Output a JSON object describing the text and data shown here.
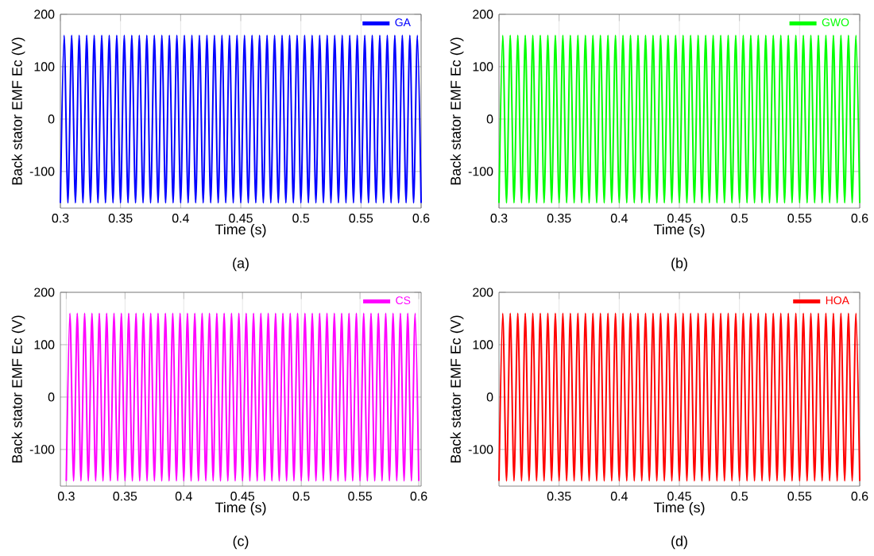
{
  "chart_data": [
    {
      "type": "line",
      "xlabel": "Time (s)",
      "ylabel": "Back stator EMF Ec (V)",
      "annotations": [
        "(a)"
      ],
      "xlim": [
        0.3,
        0.6
      ],
      "ylim": [
        -170,
        200
      ],
      "xticks": [
        0.3,
        0.35,
        0.4,
        0.45,
        0.5,
        0.55,
        0.6
      ],
      "yticks": [
        -100,
        0,
        100,
        200
      ],
      "grid": true,
      "legend": "top right",
      "x": [
        0.3,
        0.303125,
        0.30625,
        0.309375,
        0.3125,
        0.315625,
        0.31875,
        0.321875,
        0.325,
        0.328125,
        0.33125,
        0.334375,
        0.3375,
        0.340625,
        0.34375,
        0.346875,
        0.35,
        0.353125,
        0.35625,
        0.359375,
        0.3625,
        0.365625,
        0.36875,
        0.371875,
        0.375,
        0.378125,
        0.38125,
        0.384375,
        0.3875,
        0.390625,
        0.39375,
        0.396875,
        0.4,
        0.403125,
        0.40625,
        0.409375,
        0.4125,
        0.415625,
        0.41875,
        0.421875,
        0.425,
        0.428125,
        0.43125,
        0.434375,
        0.4375,
        0.440625,
        0.44375,
        0.446875,
        0.45,
        0.453125,
        0.45625,
        0.459375,
        0.4625,
        0.465625,
        0.46875,
        0.471875,
        0.475,
        0.478125,
        0.48125,
        0.484375,
        0.4875,
        0.490625,
        0.49375,
        0.496875,
        0.5,
        0.503125,
        0.50625,
        0.509375,
        0.5125,
        0.515625,
        0.51875,
        0.521875,
        0.525,
        0.528125,
        0.53125,
        0.534375,
        0.5375,
        0.540625,
        0.54375,
        0.546875,
        0.55,
        0.553125,
        0.55625,
        0.559375,
        0.5625,
        0.565625,
        0.56875,
        0.571875,
        0.575,
        0.578125,
        0.58125,
        0.584375,
        0.5875,
        0.590625,
        0.59375,
        0.596875,
        0.6
      ],
      "series": [
        {
          "name": "GA",
          "color": "#0000ff",
          "values": [
            -160,
            160,
            -160,
            160,
            -160,
            160,
            -160,
            160,
            -160,
            160,
            -160,
            160,
            -160,
            160,
            -160,
            160,
            -160,
            160,
            -160,
            160,
            -160,
            160,
            -160,
            160,
            -160,
            160,
            -160,
            160,
            -160,
            160,
            -160,
            160,
            -160,
            160,
            -160,
            160,
            -160,
            160,
            -160,
            160,
            -160,
            160,
            -160,
            160,
            -160,
            160,
            -160,
            160,
            -160,
            160,
            -160,
            160,
            -160,
            160,
            -160,
            160,
            -160,
            160,
            -160,
            160,
            -160,
            160,
            -160,
            160,
            -160,
            160,
            -160,
            160,
            -160,
            160,
            -160,
            160,
            -160,
            160,
            -160,
            160,
            -160,
            160,
            -160,
            160,
            -160,
            160,
            -160,
            160,
            -160,
            160,
            -160,
            160,
            -160,
            160,
            -160,
            160,
            -160,
            160,
            -160,
            160,
            -160
          ]
        }
      ]
    },
    {
      "type": "line",
      "xlabel": "Time (s)",
      "ylabel": "Back stator EMF Ec (V)",
      "annotations": [
        "(b)"
      ],
      "xlim": [
        0.3,
        0.6
      ],
      "ylim": [
        -170,
        200
      ],
      "xticks": [
        0.3,
        0.35,
        0.4,
        0.45,
        0.5,
        0.55,
        0.6
      ],
      "yticks": [
        -100,
        0,
        100,
        200
      ],
      "grid": true,
      "legend": "top right",
      "x": [
        0.3,
        0.303125,
        0.30625,
        0.309375,
        0.3125,
        0.315625,
        0.31875,
        0.321875,
        0.325,
        0.328125,
        0.33125,
        0.334375,
        0.3375,
        0.340625,
        0.34375,
        0.346875,
        0.35,
        0.353125,
        0.35625,
        0.359375,
        0.3625,
        0.365625,
        0.36875,
        0.371875,
        0.375,
        0.378125,
        0.38125,
        0.384375,
        0.3875,
        0.390625,
        0.39375,
        0.396875,
        0.4,
        0.403125,
        0.40625,
        0.409375,
        0.4125,
        0.415625,
        0.41875,
        0.421875,
        0.425,
        0.428125,
        0.43125,
        0.434375,
        0.4375,
        0.440625,
        0.44375,
        0.446875,
        0.45,
        0.453125,
        0.45625,
        0.459375,
        0.4625,
        0.465625,
        0.46875,
        0.471875,
        0.475,
        0.478125,
        0.48125,
        0.484375,
        0.4875,
        0.490625,
        0.49375,
        0.496875,
        0.5,
        0.503125,
        0.50625,
        0.509375,
        0.5125,
        0.515625,
        0.51875,
        0.521875,
        0.525,
        0.528125,
        0.53125,
        0.534375,
        0.5375,
        0.540625,
        0.54375,
        0.546875,
        0.55,
        0.553125,
        0.55625,
        0.559375,
        0.5625,
        0.565625,
        0.56875,
        0.571875,
        0.575,
        0.578125,
        0.58125,
        0.584375,
        0.5875,
        0.590625,
        0.59375,
        0.596875,
        0.6
      ],
      "series": [
        {
          "name": "GWO",
          "color": "#00ff00",
          "values": [
            -160,
            160,
            -160,
            160,
            -160,
            160,
            -160,
            160,
            -160,
            160,
            -160,
            160,
            -160,
            160,
            -160,
            160,
            -160,
            160,
            -160,
            160,
            -160,
            160,
            -160,
            160,
            -160,
            160,
            -160,
            160,
            -160,
            160,
            -160,
            160,
            -160,
            160,
            -160,
            160,
            -160,
            160,
            -160,
            160,
            -160,
            160,
            -160,
            160,
            -160,
            160,
            -160,
            160,
            -160,
            160,
            -160,
            160,
            -160,
            160,
            -160,
            160,
            -160,
            160,
            -160,
            160,
            -160,
            160,
            -160,
            160,
            -160,
            160,
            -160,
            160,
            -160,
            160,
            -160,
            160,
            -160,
            160,
            -160,
            160,
            -160,
            160,
            -160,
            160,
            -160,
            160,
            -160,
            160,
            -160,
            160,
            -160,
            160,
            -160,
            160,
            -160,
            160,
            -160,
            160,
            -160,
            160,
            -160
          ]
        }
      ]
    },
    {
      "type": "line",
      "xlabel": "Time (s)",
      "ylabel": "Back stator EMF Ec (V)",
      "annotations": [
        "(c)"
      ],
      "xlim": [
        0.295,
        0.602
      ],
      "ylim": [
        -170,
        200
      ],
      "xticks": [
        0.3,
        0.35,
        0.4,
        0.45,
        0.5,
        0.55,
        0.6
      ],
      "yticks": [
        -100,
        0,
        100,
        200
      ],
      "grid": true,
      "legend": "top right",
      "x": [
        0.3,
        0.303125,
        0.30625,
        0.309375,
        0.3125,
        0.315625,
        0.31875,
        0.321875,
        0.325,
        0.328125,
        0.33125,
        0.334375,
        0.3375,
        0.340625,
        0.34375,
        0.346875,
        0.35,
        0.353125,
        0.35625,
        0.359375,
        0.3625,
        0.365625,
        0.36875,
        0.371875,
        0.375,
        0.378125,
        0.38125,
        0.384375,
        0.3875,
        0.390625,
        0.39375,
        0.396875,
        0.4,
        0.403125,
        0.40625,
        0.409375,
        0.4125,
        0.415625,
        0.41875,
        0.421875,
        0.425,
        0.428125,
        0.43125,
        0.434375,
        0.4375,
        0.440625,
        0.44375,
        0.446875,
        0.45,
        0.453125,
        0.45625,
        0.459375,
        0.4625,
        0.465625,
        0.46875,
        0.471875,
        0.475,
        0.478125,
        0.48125,
        0.484375,
        0.4875,
        0.490625,
        0.49375,
        0.496875,
        0.5,
        0.503125,
        0.50625,
        0.509375,
        0.5125,
        0.515625,
        0.51875,
        0.521875,
        0.525,
        0.528125,
        0.53125,
        0.534375,
        0.5375,
        0.540625,
        0.54375,
        0.546875,
        0.55,
        0.553125,
        0.55625,
        0.559375,
        0.5625,
        0.565625,
        0.56875,
        0.571875,
        0.575,
        0.578125,
        0.58125,
        0.584375,
        0.5875,
        0.590625,
        0.59375,
        0.596875,
        0.6
      ],
      "series": [
        {
          "name": "CS",
          "color": "#ff00ff",
          "values": [
            -160,
            160,
            -160,
            160,
            -160,
            160,
            -160,
            160,
            -160,
            160,
            -160,
            160,
            -160,
            160,
            -160,
            160,
            -160,
            160,
            -160,
            160,
            -160,
            160,
            -160,
            160,
            -160,
            160,
            -160,
            160,
            -160,
            160,
            -160,
            160,
            -160,
            160,
            -160,
            160,
            -160,
            160,
            -160,
            160,
            -160,
            160,
            -160,
            160,
            -160,
            160,
            -160,
            160,
            -160,
            160,
            -160,
            160,
            -160,
            160,
            -160,
            160,
            -160,
            160,
            -160,
            160,
            -160,
            160,
            -160,
            160,
            -160,
            160,
            -160,
            160,
            -160,
            160,
            -160,
            160,
            -160,
            160,
            -160,
            160,
            -160,
            160,
            -160,
            160,
            -160,
            160,
            -160,
            160,
            -160,
            160,
            -160,
            160,
            -160,
            160,
            -160,
            160,
            -160,
            160,
            -160,
            160,
            -160
          ]
        }
      ]
    },
    {
      "type": "line",
      "xlabel": "Time (s)",
      "ylabel": "Back stator EMF Ec (V)",
      "annotations": [
        "(d)"
      ],
      "xlim": [
        0.3,
        0.6
      ],
      "ylim": [
        -170,
        200
      ],
      "xticks": [
        0.35,
        0.4,
        0.45,
        0.5,
        0.55,
        0.6
      ],
      "yticks": [
        -100,
        0,
        100,
        200
      ],
      "grid": true,
      "legend": "top right",
      "x": [
        0.3,
        0.303125,
        0.30625,
        0.309375,
        0.3125,
        0.315625,
        0.31875,
        0.321875,
        0.325,
        0.328125,
        0.33125,
        0.334375,
        0.3375,
        0.340625,
        0.34375,
        0.346875,
        0.35,
        0.353125,
        0.35625,
        0.359375,
        0.3625,
        0.365625,
        0.36875,
        0.371875,
        0.375,
        0.378125,
        0.38125,
        0.384375,
        0.3875,
        0.390625,
        0.39375,
        0.396875,
        0.4,
        0.403125,
        0.40625,
        0.409375,
        0.4125,
        0.415625,
        0.41875,
        0.421875,
        0.425,
        0.428125,
        0.43125,
        0.434375,
        0.4375,
        0.440625,
        0.44375,
        0.446875,
        0.45,
        0.453125,
        0.45625,
        0.459375,
        0.4625,
        0.465625,
        0.46875,
        0.471875,
        0.475,
        0.478125,
        0.48125,
        0.484375,
        0.4875,
        0.490625,
        0.49375,
        0.496875,
        0.5,
        0.503125,
        0.50625,
        0.509375,
        0.5125,
        0.515625,
        0.51875,
        0.521875,
        0.525,
        0.528125,
        0.53125,
        0.534375,
        0.5375,
        0.540625,
        0.54375,
        0.546875,
        0.55,
        0.553125,
        0.55625,
        0.559375,
        0.5625,
        0.565625,
        0.56875,
        0.571875,
        0.575,
        0.578125,
        0.58125,
        0.584375,
        0.5875,
        0.590625,
        0.59375,
        0.596875,
        0.6
      ],
      "series": [
        {
          "name": "HOA",
          "color": "#ff0000",
          "values": [
            -160,
            160,
            -160,
            160,
            -160,
            160,
            -160,
            160,
            -160,
            160,
            -160,
            160,
            -160,
            160,
            -160,
            160,
            -160,
            160,
            -160,
            160,
            -160,
            160,
            -160,
            160,
            -160,
            160,
            -160,
            160,
            -160,
            160,
            -160,
            160,
            -160,
            160,
            -160,
            160,
            -160,
            160,
            -160,
            160,
            -160,
            160,
            -160,
            160,
            -160,
            160,
            -160,
            160,
            -160,
            160,
            -160,
            160,
            -160,
            160,
            -160,
            160,
            -160,
            160,
            -160,
            160,
            -160,
            160,
            -160,
            160,
            -160,
            160,
            -160,
            160,
            -160,
            160,
            -160,
            160,
            -160,
            160,
            -160,
            160,
            -160,
            160,
            -160,
            160,
            -160,
            160,
            -160,
            160,
            -160,
            160,
            -160,
            160,
            -160,
            160,
            -160,
            160,
            -160,
            160,
            -160,
            160,
            -160
          ]
        }
      ]
    }
  ]
}
